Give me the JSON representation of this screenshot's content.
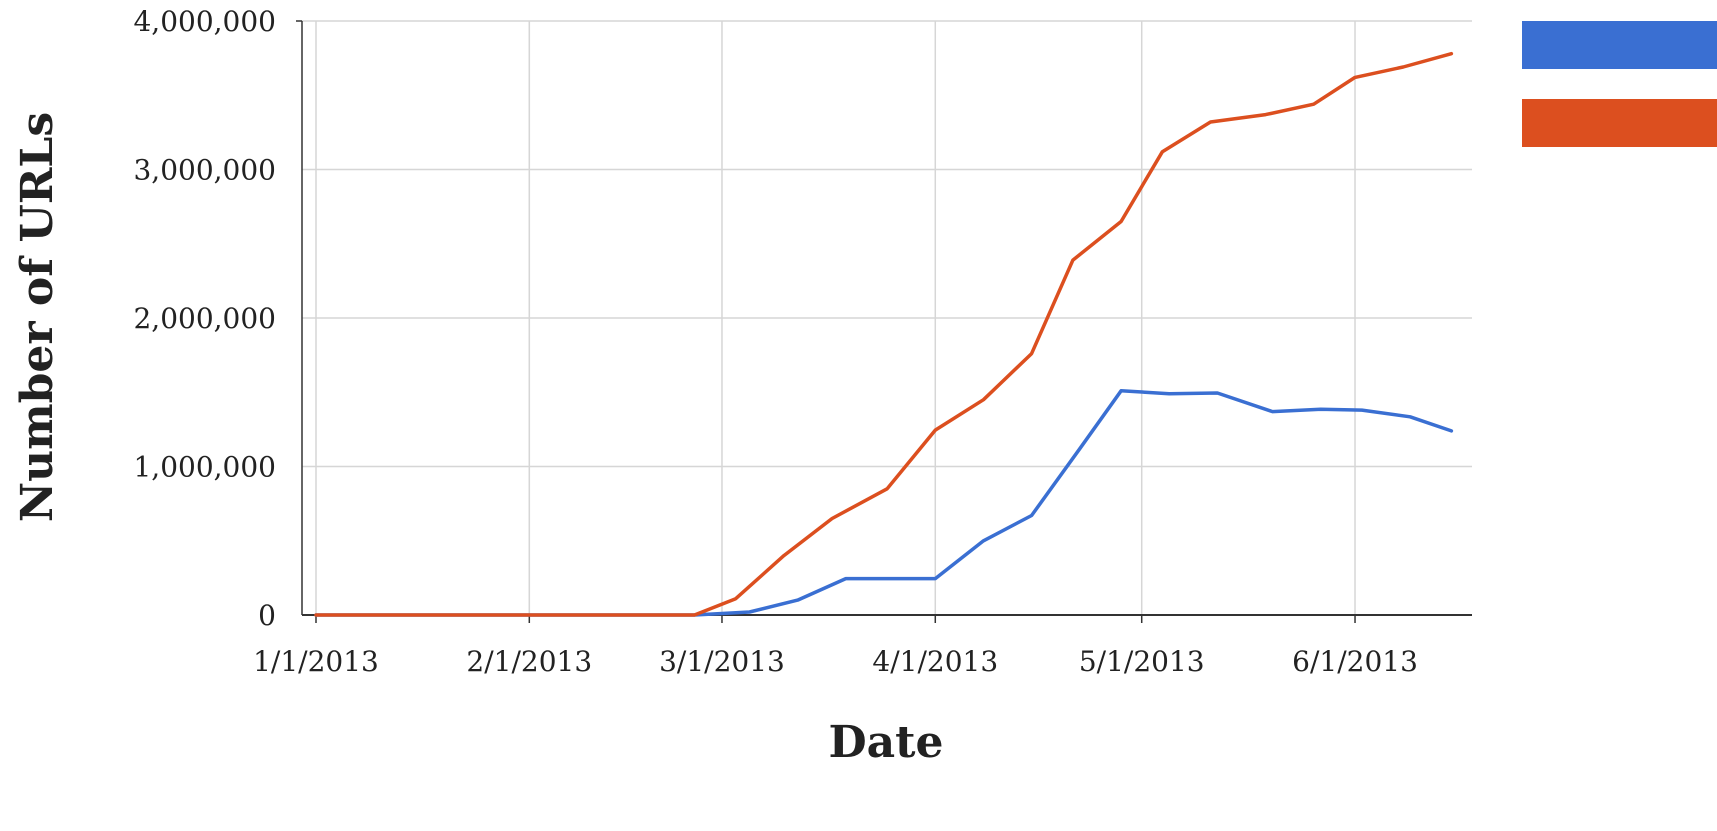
{
  "chart_data": {
    "type": "line",
    "title": "",
    "xlabel": "Date",
    "ylabel": "Number of URLs",
    "x_ticks": [
      "1/1/2013",
      "2/1/2013",
      "3/1/2013",
      "4/1/2013",
      "5/1/2013",
      "6/1/2013"
    ],
    "x_range": [
      "2013-01-01",
      "2013-06-18"
    ],
    "y_ticks": [
      "0",
      "1,000,000",
      "2,000,000",
      "3,000,000",
      "4,000,000"
    ],
    "ylim": [
      0,
      4000000
    ],
    "grid": true,
    "legend": {
      "placement": "top-right",
      "entries": [
        {
          "label": "",
          "color": "#3a6fd2"
        },
        {
          "label": "",
          "color": "#dc4f1f"
        }
      ]
    },
    "series": [
      {
        "color": "#3a6fd2",
        "points": [
          [
            "2013-01-01",
            0
          ],
          [
            "2013-02-01",
            0
          ],
          [
            "2013-02-25",
            0
          ],
          [
            "2013-03-05",
            20000
          ],
          [
            "2013-03-12",
            100000
          ],
          [
            "2013-03-19",
            245000
          ],
          [
            "2013-03-26",
            245000
          ],
          [
            "2013-04-01",
            245000
          ],
          [
            "2013-04-08",
            500000
          ],
          [
            "2013-04-15",
            670000
          ],
          [
            "2013-04-22",
            1120000
          ],
          [
            "2013-04-28",
            1510000
          ],
          [
            "2013-05-05",
            1490000
          ],
          [
            "2013-05-12",
            1495000
          ],
          [
            "2013-05-20",
            1370000
          ],
          [
            "2013-05-27",
            1385000
          ],
          [
            "2013-06-02",
            1380000
          ],
          [
            "2013-06-09",
            1335000
          ],
          [
            "2013-06-15",
            1240000
          ]
        ]
      },
      {
        "color": "#dc4f1f",
        "points": [
          [
            "2013-01-01",
            0
          ],
          [
            "2013-02-01",
            0
          ],
          [
            "2013-02-25",
            0
          ],
          [
            "2013-03-03",
            110000
          ],
          [
            "2013-03-10",
            400000
          ],
          [
            "2013-03-17",
            650000
          ],
          [
            "2013-03-25",
            850000
          ],
          [
            "2013-04-01",
            1245000
          ],
          [
            "2013-04-08",
            1450000
          ],
          [
            "2013-04-15",
            1760000
          ],
          [
            "2013-04-21",
            2390000
          ],
          [
            "2013-04-28",
            2650000
          ],
          [
            "2013-05-04",
            3120000
          ],
          [
            "2013-05-11",
            3320000
          ],
          [
            "2013-05-19",
            3370000
          ],
          [
            "2013-05-26",
            3440000
          ],
          [
            "2013-06-01",
            3620000
          ],
          [
            "2013-06-08",
            3690000
          ],
          [
            "2013-06-15",
            3780000
          ]
        ]
      }
    ]
  }
}
